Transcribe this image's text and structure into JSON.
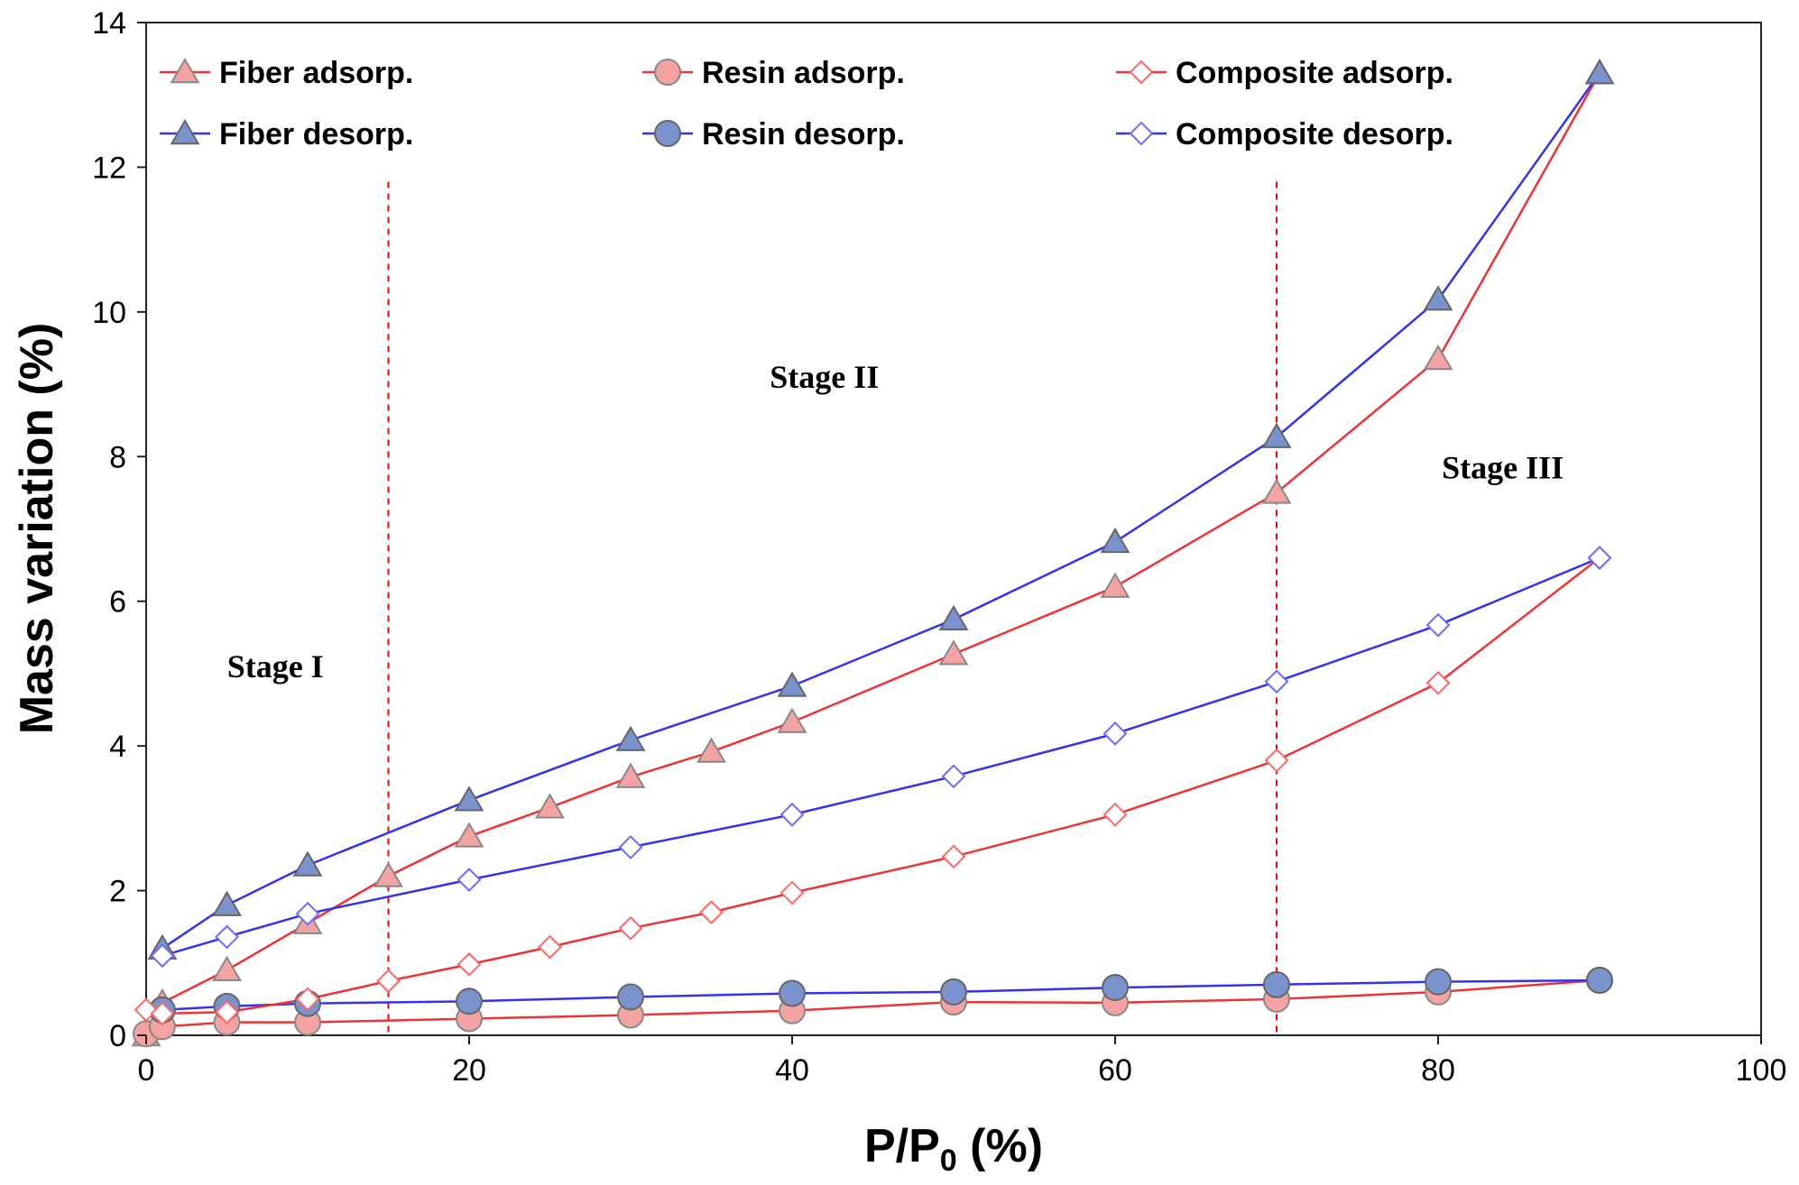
{
  "chart_data": {
    "type": "line",
    "xlabel": "P/P",
    "xlabel_subscript": "0",
    "xlabel_unit": " (%)",
    "ylabel": "Mass variation (%)",
    "xlim": [
      0,
      100
    ],
    "ylim": [
      0,
      14
    ],
    "xticks": [
      0,
      20,
      40,
      60,
      80,
      100
    ],
    "yticks": [
      0,
      2,
      4,
      6,
      8,
      10,
      12,
      14
    ],
    "grid": false,
    "legend_position": "top, three columns",
    "series": [
      {
        "name": "Fiber adsorp.",
        "line_color": "#ee3333",
        "marker": "triangle",
        "marker_fill": "#f4a3a3",
        "marker_stroke": "#888888",
        "x": [
          0,
          1,
          5,
          10,
          15,
          20,
          25,
          30,
          35,
          40,
          50,
          60,
          70,
          80,
          90
        ],
        "y": [
          0.0,
          0.45,
          0.9,
          1.55,
          2.2,
          2.75,
          3.15,
          3.57,
          3.92,
          4.33,
          5.27,
          6.2,
          7.5,
          9.35,
          13.3
        ]
      },
      {
        "name": "Fiber desorp.",
        "line_color": "#3333ee",
        "marker": "triangle",
        "marker_fill": "#7b93cc",
        "marker_stroke": "#666666",
        "x": [
          1,
          5,
          10,
          20,
          30,
          40,
          50,
          60,
          70,
          80,
          90
        ],
        "y": [
          1.2,
          1.8,
          2.35,
          3.25,
          4.08,
          4.83,
          5.75,
          6.82,
          8.27,
          10.17,
          13.3
        ]
      },
      {
        "name": "Resin adsorp.",
        "line_color": "#ee3333",
        "marker": "circle",
        "marker_fill": "#f4a3a3",
        "marker_stroke": "#888888",
        "x": [
          0,
          1,
          5,
          10,
          20,
          30,
          40,
          50,
          60,
          70,
          80,
          90
        ],
        "y": [
          0.02,
          0.12,
          0.18,
          0.18,
          0.23,
          0.28,
          0.34,
          0.46,
          0.45,
          0.5,
          0.6,
          0.76
        ]
      },
      {
        "name": "Resin desorp.",
        "line_color": "#3333ee",
        "marker": "circle",
        "marker_fill": "#7b93cc",
        "marker_stroke": "#666666",
        "x": [
          1,
          5,
          10,
          20,
          30,
          40,
          50,
          60,
          70,
          80,
          90
        ],
        "y": [
          0.35,
          0.4,
          0.44,
          0.47,
          0.53,
          0.58,
          0.6,
          0.66,
          0.7,
          0.74,
          0.76
        ]
      },
      {
        "name": "Composite adsorp.",
        "line_color": "#ee3333",
        "marker": "diamond",
        "marker_fill": "#ffffff",
        "marker_stroke": "#ff6666",
        "x": [
          0,
          1,
          5,
          10,
          15,
          20,
          25,
          30,
          35,
          40,
          50,
          60,
          70,
          80,
          90
        ],
        "y": [
          0.35,
          0.3,
          0.32,
          0.5,
          0.75,
          0.98,
          1.22,
          1.48,
          1.7,
          1.97,
          2.47,
          3.05,
          3.8,
          4.87,
          6.6
        ]
      },
      {
        "name": "Composite desorp.",
        "line_color": "#3333ee",
        "marker": "diamond",
        "marker_fill": "#ffffff",
        "marker_stroke": "#6b6bff",
        "x": [
          1,
          5,
          10,
          20,
          30,
          40,
          50,
          60,
          70,
          80,
          90
        ],
        "y": [
          1.1,
          1.36,
          1.68,
          2.15,
          2.6,
          3.05,
          3.58,
          4.17,
          4.89,
          5.67,
          6.6
        ]
      }
    ],
    "divider_lines": {
      "x": [
        15,
        70
      ],
      "color": "#ff0000"
    },
    "annotations": [
      {
        "text": "Stage I",
        "x": 8,
        "y": 4.95
      },
      {
        "text": "Stage II",
        "x": 42,
        "y": 8.95
      },
      {
        "text": "Stage III",
        "x": 84,
        "y": 7.7
      }
    ]
  }
}
